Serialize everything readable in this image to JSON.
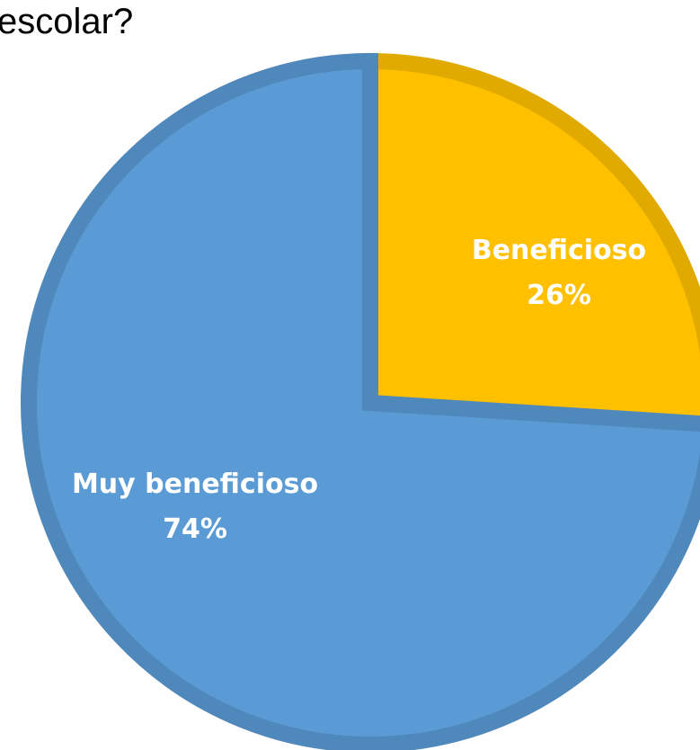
{
  "chart_data": {
    "type": "pie",
    "title": "escolar?",
    "slices": [
      {
        "label": "Beneficioso",
        "value": 26,
        "value_label": "26%",
        "color": "#FFC000",
        "border_color": "#E0AA00"
      },
      {
        "label": "Muy beneficioso",
        "value": 74,
        "value_label": "74%",
        "color": "#5B9BD5",
        "border_color": "#4F88BB"
      }
    ],
    "start_angle_deg": 0,
    "direction": "clockwise",
    "legend": "none"
  }
}
